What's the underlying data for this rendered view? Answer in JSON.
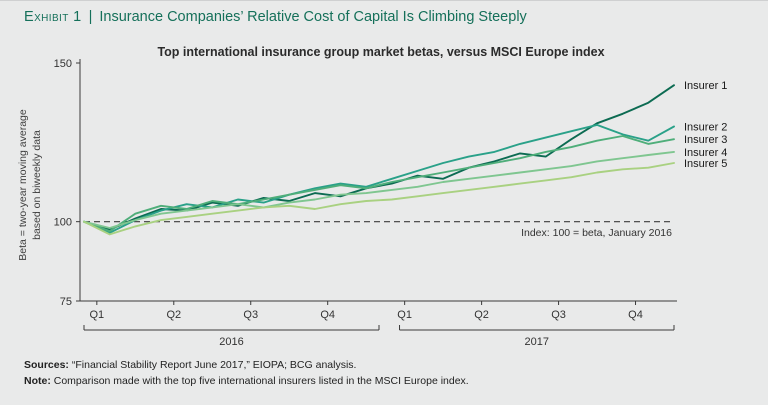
{
  "header": {
    "exhibit_label": "Exhibit 1",
    "separator": "|",
    "title": "Insurance Companies’ Relative Cost of Capital Is Climbing Steeply"
  },
  "chart": {
    "title": "Top international insurance group market betas, versus MSCI Europe index",
    "y_axis_label_line1": "Beta = two-year moving average",
    "y_axis_label_line2": "based on biweekly data",
    "index_annotation": "Index: 100 = beta, January 2016"
  },
  "chart_data": {
    "type": "line",
    "title": "Top international insurance group market betas, versus MSCI Europe index",
    "xlabel": "",
    "ylabel": "Beta = two-year moving average based on biweekly data",
    "ylim": [
      75,
      150
    ],
    "y_ticks": [
      150,
      100,
      75
    ],
    "grid": false,
    "legend_position": "right-of-line-ends",
    "reference_line": {
      "value": 100,
      "style": "dashed",
      "label": "Index: 100 = beta, January 2016"
    },
    "x_quarter_ticks": [
      "Q1",
      "Q2",
      "Q3",
      "Q4",
      "Q1",
      "Q2",
      "Q3",
      "Q4"
    ],
    "x_year_groups": [
      {
        "label": "2016",
        "quarters": 4
      },
      {
        "label": "2017",
        "quarters": 4
      }
    ],
    "x_unit": "months from January 2016, biweekly-smoothed",
    "series": [
      {
        "name": "Insurer 1",
        "color": "#0c6b52",
        "values": [
          100,
          97.5,
          101,
          104,
          103.5,
          106,
          105,
          107.5,
          106.5,
          109,
          108,
          110.5,
          112,
          114.5,
          113.5,
          117,
          119,
          121.5,
          120.5,
          126,
          131,
          134,
          137.5,
          143
        ]
      },
      {
        "name": "Insurer 2",
        "color": "#2aa189",
        "values": [
          100,
          96.5,
          100.5,
          103.5,
          105.5,
          104.5,
          107,
          106,
          108.5,
          110.5,
          112,
          111,
          113.5,
          116,
          118.5,
          120.5,
          122,
          124.5,
          126.5,
          128.5,
          130.5,
          127.5,
          125.5,
          130
        ]
      },
      {
        "name": "Insurer 3",
        "color": "#4fae7a",
        "values": [
          100,
          97,
          102.5,
          105,
          104,
          106.5,
          105.5,
          107,
          108.5,
          110,
          111.5,
          110.5,
          112.5,
          114,
          115.5,
          117,
          118.5,
          120,
          122,
          123.5,
          125.5,
          127,
          124.5,
          126
        ]
      },
      {
        "name": "Insurer 4",
        "color": "#7fc690",
        "values": [
          100,
          98,
          100.5,
          102.5,
          103.5,
          104.5,
          105.5,
          104.5,
          106,
          107,
          108.5,
          109,
          110,
          111,
          112.5,
          113.5,
          114.5,
          115.5,
          116.5,
          117.5,
          119,
          120,
          121,
          122
        ]
      },
      {
        "name": "Insurer 5",
        "color": "#a9d181",
        "values": [
          100,
          96,
          98.5,
          100.5,
          101.5,
          102.5,
          103.5,
          104.5,
          105,
          104,
          105.5,
          106.5,
          107,
          108,
          109,
          110,
          111,
          112,
          113,
          114,
          115.5,
          116.5,
          117,
          118.5
        ]
      }
    ]
  },
  "footer": {
    "sources_label": "Sources:",
    "sources_text": " “Financial Stability Report June 2017,” EIOPA; BCG analysis.",
    "note_label": "Note:",
    "note_text": " Comparison made with the top five international insurers listed in the MSCI Europe index."
  },
  "colors": {
    "accent": "#15705a",
    "background": "#e9eaea",
    "axis": "#3a3a3a"
  }
}
